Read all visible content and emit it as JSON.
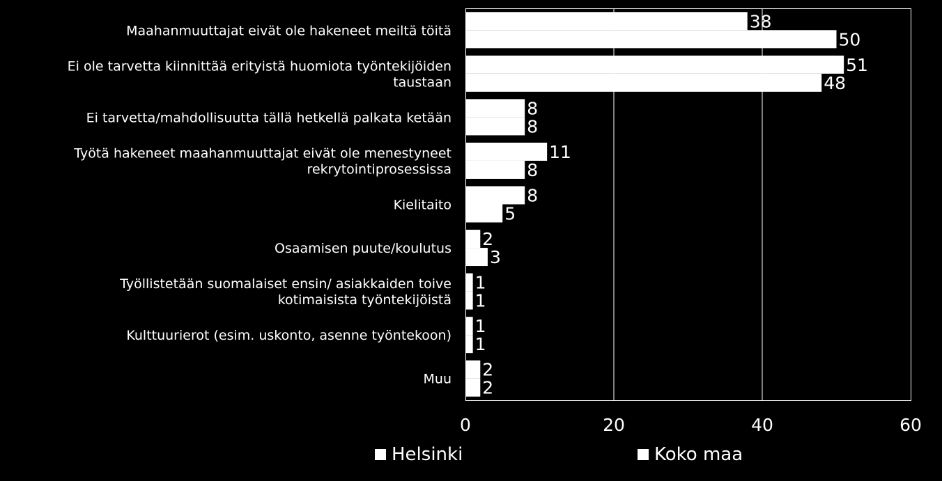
{
  "chart_data": {
    "type": "bar",
    "orientation": "horizontal",
    "categories": [
      [
        "Maahanmuuttajat eivät ole hakeneet meiltä töitä"
      ],
      [
        "Ei ole tarvetta kiinnittää erityistä huomiota työntekijöiden",
        "taustaan"
      ],
      [
        "Ei tarvetta/mahdollisuutta tällä hetkellä palkata ketään"
      ],
      [
        "Työtä hakeneet maahanmuuttajat eivät ole menestyneet",
        "rekrytointiprosessissa"
      ],
      [
        "Kielitaito"
      ],
      [
        "Osaamisen puute/koulutus"
      ],
      [
        "Työllistetään suomalaiset ensin/ asiakkaiden toive",
        "kotimaisista työntekijöistä"
      ],
      [
        "Kulttuurierot (esim. uskonto, asenne työntekoon)"
      ],
      [
        "Muu"
      ]
    ],
    "series": [
      {
        "name": "Helsinki",
        "values": [
          38,
          51,
          8,
          11,
          8,
          2,
          1,
          1,
          2
        ]
      },
      {
        "name": "Koko maa",
        "values": [
          50,
          48,
          8,
          8,
          5,
          3,
          1,
          1,
          2
        ]
      }
    ],
    "xlim": [
      0,
      60
    ],
    "xticks": [
      "0",
      "20",
      "40",
      "60"
    ],
    "grid": true,
    "legend_position": "bottom",
    "colors": {
      "background": "#000000",
      "bars": "#ffffff",
      "grid": "#ffffff",
      "text": "#ffffff"
    }
  }
}
